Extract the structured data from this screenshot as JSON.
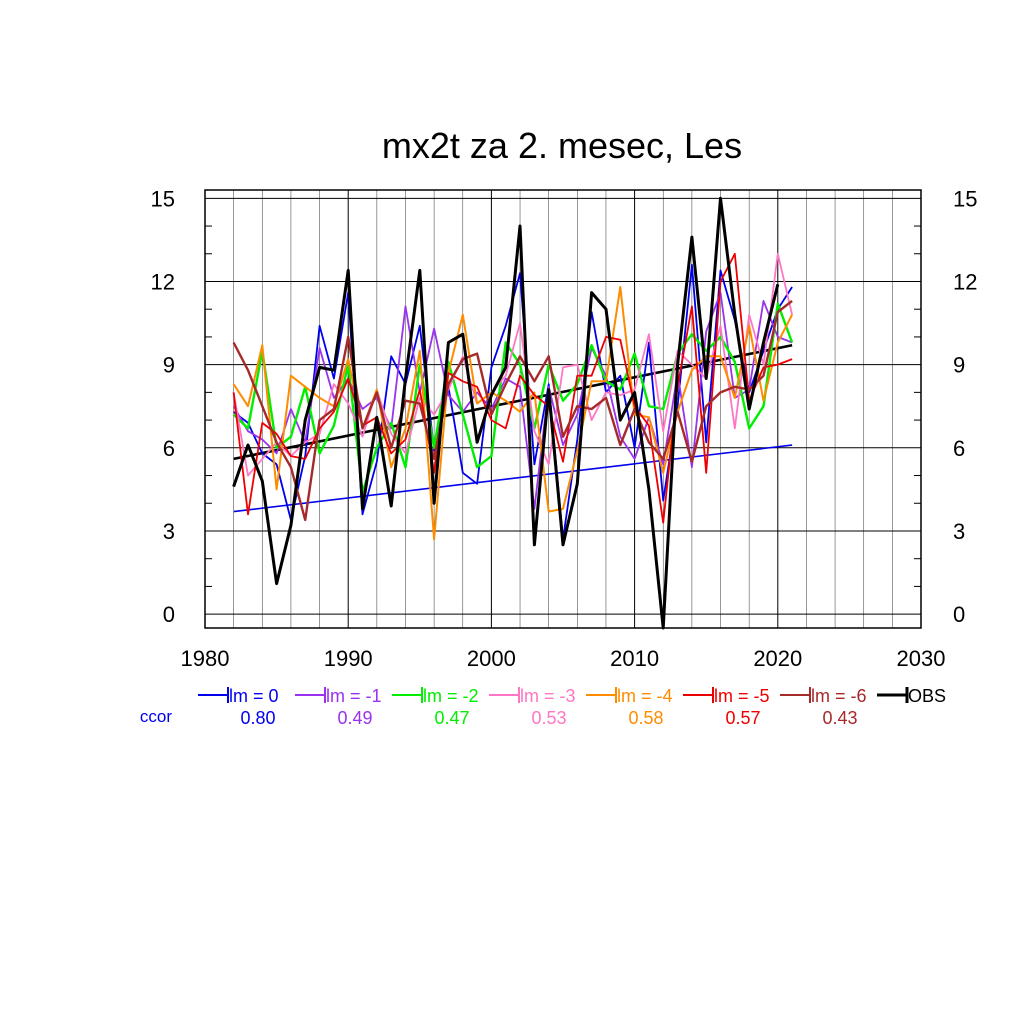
{
  "chart_data": {
    "type": "line",
    "title": "mx2t za 2. mesec, Les",
    "xlabel": "",
    "ylabel": "",
    "xlim": [
      1980,
      2030
    ],
    "ylim": [
      -0.5,
      15.3
    ],
    "xticks": [
      1980,
      1990,
      2000,
      2010,
      2020,
      2030
    ],
    "yticks": [
      0,
      3,
      6,
      9,
      12,
      15
    ],
    "grid": true,
    "legend_position": "bottom",
    "ccor_label": "ccor",
    "x": [
      1982,
      1983,
      1984,
      1985,
      1986,
      1987,
      1988,
      1989,
      1990,
      1991,
      1992,
      1993,
      1994,
      1995,
      1996,
      1997,
      1998,
      1999,
      2000,
      2001,
      2002,
      2003,
      2004,
      2005,
      2006,
      2007,
      2008,
      2009,
      2010,
      2011,
      2012,
      2013,
      2014,
      2015,
      2016,
      2017,
      2018,
      2019,
      2020,
      2021
    ],
    "series": [
      {
        "name": "lm = 0",
        "color": "#0000ee",
        "ccor": "0.80",
        "width": 1.8,
        "values": [
          7.3,
          6.9,
          5.8,
          5.4,
          3.4,
          5.7,
          10.4,
          8.5,
          11.6,
          3.6,
          5.5,
          9.3,
          8.3,
          10.4,
          5.9,
          8.2,
          5.1,
          4.7,
          8.9,
          10.4,
          12.3,
          5.4,
          8.3,
          2.7,
          6.3,
          10.9,
          8.0,
          8.6,
          6.0,
          9.8,
          4.1,
          7.5,
          12.6,
          6.2,
          12.4,
          10.6,
          8.0,
          9.5,
          11.0,
          11.8
        ]
      },
      {
        "name": "lm = -1",
        "color": "#9a32ee",
        "ccor": "0.49",
        "width": 1.8,
        "values": [
          7.5,
          6.6,
          6.3,
          5.8,
          7.4,
          6.2,
          9.6,
          7.8,
          8.5,
          7.4,
          7.8,
          6.7,
          11.1,
          8.0,
          10.3,
          7.9,
          7.3,
          8.0,
          7.4,
          8.5,
          8.2,
          3.8,
          8.2,
          6.1,
          7.2,
          9.6,
          8.6,
          6.4,
          5.6,
          7.1,
          5.4,
          8.7,
          5.3,
          10.2,
          11.6,
          7.8,
          8.1,
          11.3,
          10.0,
          9.8
        ]
      },
      {
        "name": "lm = -2",
        "color": "#00ee00",
        "ccor": "0.47",
        "width": 2.4,
        "values": [
          7.2,
          6.7,
          9.5,
          6.0,
          6.4,
          8.2,
          5.8,
          6.8,
          9.0,
          4.4,
          6.0,
          6.9,
          5.3,
          9.0,
          6.0,
          9.1,
          7.2,
          5.3,
          5.7,
          9.8,
          9.0,
          6.7,
          9.0,
          7.7,
          8.3,
          9.7,
          8.4,
          8.1,
          9.4,
          7.5,
          7.4,
          9.4,
          10.1,
          9.5,
          10.0,
          9.1,
          6.7,
          7.5,
          11.2,
          9.8
        ]
      },
      {
        "name": "lm = -3",
        "color": "#ff77c4",
        "ccor": "0.53",
        "width": 1.8,
        "values": [
          8.0,
          5.0,
          5.6,
          6.2,
          5.7,
          6.2,
          6.5,
          8.3,
          7.6,
          6.4,
          8.1,
          6.5,
          5.8,
          7.8,
          7.2,
          8.1,
          9.3,
          7.6,
          8.0,
          8.6,
          10.5,
          6.6,
          5.4,
          8.9,
          9.0,
          7.0,
          8.0,
          7.9,
          8.1,
          10.1,
          6.6,
          9.5,
          9.0,
          8.5,
          10.4,
          6.7,
          10.8,
          9.0,
          13.0,
          10.8
        ]
      },
      {
        "name": "lm = -4",
        "color": "#ff8c00",
        "ccor": "0.58",
        "width": 2.0,
        "values": [
          8.3,
          7.5,
          9.7,
          4.5,
          8.6,
          8.2,
          7.8,
          7.5,
          9.2,
          6.7,
          8.1,
          5.3,
          6.7,
          9.5,
          2.7,
          8.7,
          10.8,
          7.6,
          8.0,
          7.7,
          7.3,
          8.0,
          3.7,
          3.8,
          5.9,
          8.4,
          8.4,
          11.8,
          7.2,
          7.1,
          5.1,
          7.3,
          8.8,
          9.3,
          9.3,
          7.8,
          10.4,
          7.7,
          9.8,
          10.8
        ]
      },
      {
        "name": "lm = -5",
        "color": "#ee0000",
        "ccor": "0.57",
        "width": 1.8,
        "values": [
          8.0,
          3.6,
          6.9,
          6.5,
          5.7,
          5.6,
          6.7,
          7.3,
          8.5,
          6.8,
          7.1,
          5.8,
          6.3,
          8.1,
          5.1,
          8.7,
          8.4,
          8.2,
          7.0,
          6.7,
          8.6,
          7.9,
          7.5,
          5.5,
          8.6,
          8.6,
          10.0,
          9.9,
          7.5,
          6.8,
          3.3,
          8.2,
          11.1,
          5.1,
          12.0,
          13.0,
          7.7,
          8.9,
          9.0,
          9.2
        ]
      },
      {
        "name": "lm = -6",
        "color": "#a52a2a",
        "ccor": "0.43",
        "width": 2.4,
        "values": [
          9.8,
          8.8,
          7.5,
          6.2,
          5.3,
          3.4,
          7.0,
          7.4,
          10.0,
          6.7,
          8.0,
          6.0,
          7.7,
          7.6,
          5.6,
          8.3,
          9.2,
          9.4,
          7.2,
          8.3,
          9.3,
          8.4,
          9.3,
          6.4,
          7.5,
          7.4,
          7.8,
          6.1,
          7.4,
          6.2,
          5.6,
          7.3,
          5.5,
          7.5,
          8.0,
          8.2,
          8.1,
          8.6,
          10.9,
          11.3
        ]
      },
      {
        "name": "OBS",
        "color": "#000000",
        "ccor": "",
        "width": 3.0,
        "values": [
          4.6,
          6.1,
          4.8,
          1.1,
          3.2,
          7.0,
          8.9,
          8.8,
          12.4,
          3.8,
          7.1,
          3.9,
          8.5,
          12.4,
          4.0,
          9.8,
          10.1,
          6.2,
          7.9,
          8.9,
          14.0,
          2.5,
          8.1,
          2.5,
          4.7,
          11.6,
          11.0,
          7.0,
          8.0,
          4.5,
          -0.5,
          9.0,
          13.6,
          8.5,
          15.0,
          10.8,
          7.4,
          9.8,
          11.9,
          null
        ]
      }
    ],
    "trend_lines": [
      {
        "series": "lm = 0",
        "color": "#0000ee",
        "from": [
          1982,
          3.7
        ],
        "to": [
          2021,
          6.1
        ]
      },
      {
        "series": "OBS",
        "color": "#000000",
        "from": [
          1982,
          5.6
        ],
        "to": [
          2021,
          9.7
        ]
      }
    ]
  }
}
